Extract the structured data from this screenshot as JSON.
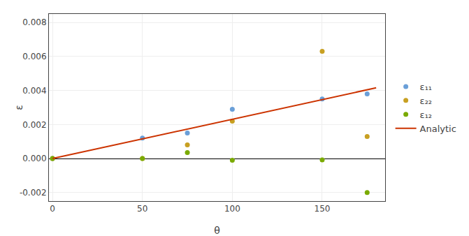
{
  "chart_data": {
    "type": "scatter",
    "xlabel": "θ",
    "ylabel": "ε",
    "series": [
      {
        "name": "ε₁₁",
        "color": "#6a9fd8",
        "x": [
          0,
          50,
          75,
          100,
          150,
          175
        ],
        "values": [
          0.0,
          0.0012,
          0.0015,
          0.0029,
          0.0035,
          0.0038
        ]
      },
      {
        "name": "ε₂₂",
        "color": "#c8a022",
        "x": [
          0,
          50,
          75,
          100,
          150,
          175
        ],
        "values": [
          0.0,
          0.0,
          0.0008,
          0.0022,
          0.0063,
          0.0013
        ]
      },
      {
        "name": "ε₁₂",
        "color": "#7aaa00",
        "x": [
          0,
          50,
          75,
          100,
          150,
          175
        ],
        "values": [
          0.0,
          0.0,
          0.00035,
          -0.0001,
          -8e-05,
          -0.002
        ]
      },
      {
        "name": "Analytic",
        "type": "line",
        "color": "#cc3300",
        "x": [
          0,
          180
        ],
        "values": [
          0,
          0.004158
        ]
      }
    ],
    "xlim": [
      -2,
      185
    ],
    "ylim": [
      -0.0025,
      0.0085
    ],
    "xticks": [
      0,
      50,
      100,
      150
    ],
    "yticks": [
      -0.002,
      {
        "value": 0,
        "label": "0.000"
      },
      0.002,
      0.004,
      0.006,
      0.008
    ],
    "grid": true,
    "legend": "right"
  }
}
